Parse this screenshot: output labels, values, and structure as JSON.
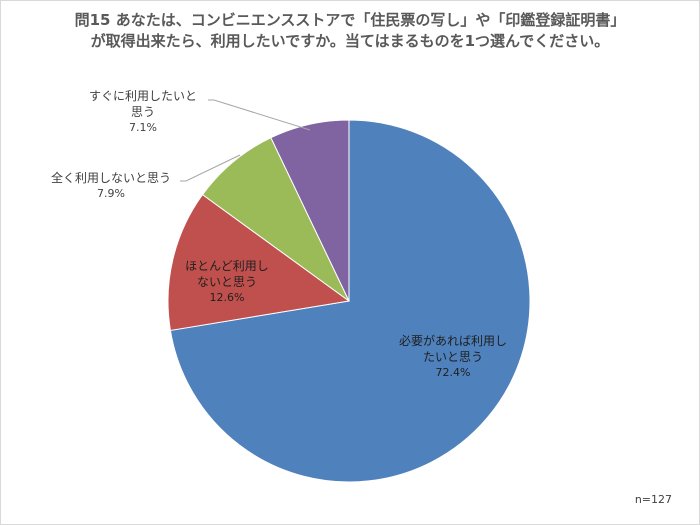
{
  "chart_data": {
    "type": "pie",
    "title": "問15 あなたは、コンビニエンスストアで「住民票の写し」や「印鑑登録証明書」が取得出来たら、利用したいですか。当てはまるものを1つ選んでください。",
    "note": "n=127",
    "slices": [
      {
        "label": "必要があれば利用したいと思う",
        "label_line1": "必要があれば利用し",
        "label_line2": "たいと思う",
        "value": 72.4,
        "pct_text": "72.4%",
        "color": "#4f81bd"
      },
      {
        "label": "ほとんど利用しないと思う",
        "label_line1": "ほとんど利用し",
        "label_line2": "ないと思う",
        "value": 12.6,
        "pct_text": "12.6%",
        "color": "#c0504d"
      },
      {
        "label": "全く利用しないと思う",
        "label_line1": "全く利用しないと思う",
        "label_line2": "",
        "value": 7.9,
        "pct_text": "7.9%",
        "color": "#9bbb59"
      },
      {
        "label": "すぐに利用したいと思う",
        "label_line1": "すぐに利用したいと",
        "label_line2": "思う",
        "value": 7.1,
        "pct_text": "7.1%",
        "color": "#8064a2"
      }
    ]
  }
}
